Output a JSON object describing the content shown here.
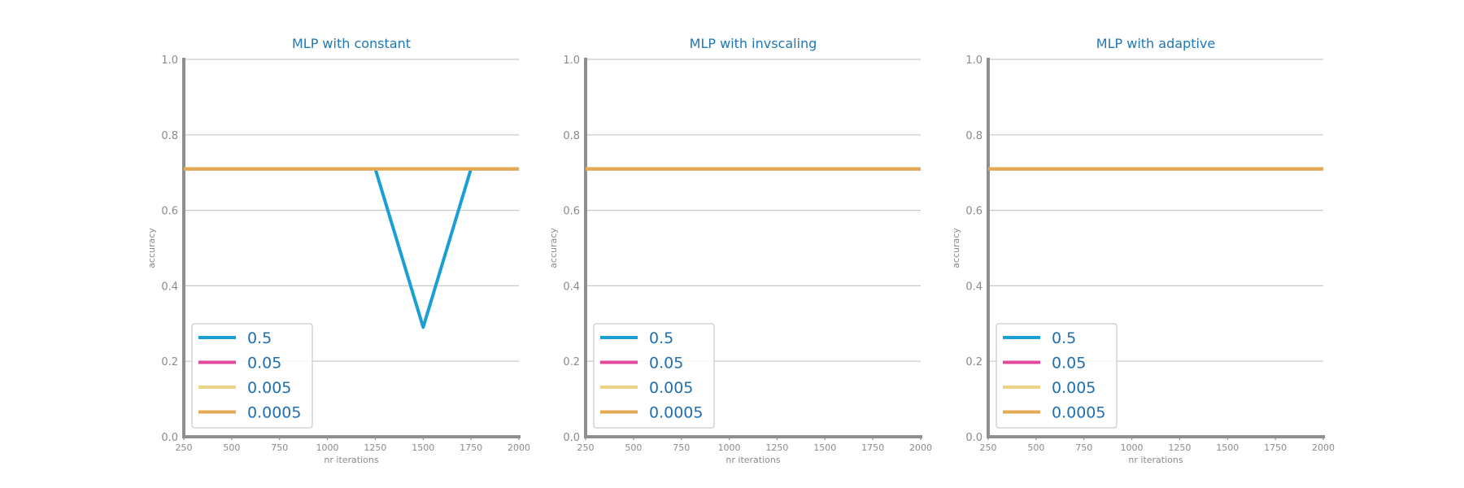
{
  "chart_data": [
    {
      "type": "line",
      "title": "MLP with constant",
      "xlabel": "nr iterations",
      "ylabel": "accuracy",
      "x": [
        250,
        500,
        750,
        1000,
        1250,
        1500,
        1750,
        2000
      ],
      "xticks": [
        "250",
        "500",
        "750",
        "1000",
        "1250",
        "1500",
        "1750",
        "2000"
      ],
      "yticks": [
        "0.0",
        "0.2",
        "0.4",
        "0.6",
        "0.8",
        "1.0"
      ],
      "xlim": [
        250,
        2000
      ],
      "ylim": [
        0,
        1
      ],
      "grid": "horizontal",
      "legend_position": "lower-left",
      "series": [
        {
          "name": "0.5",
          "color": "#1b9ed4",
          "values": [
            0.71,
            0.71,
            0.71,
            0.71,
            0.71,
            0.29,
            0.71,
            0.71
          ]
        },
        {
          "name": "0.05",
          "color": "#e2479a",
          "values": [
            0.71,
            0.71,
            0.71,
            0.71,
            0.71,
            0.71,
            0.71,
            0.71
          ]
        },
        {
          "name": "0.005",
          "color": "#e9d585",
          "values": [
            0.71,
            0.71,
            0.71,
            0.71,
            0.71,
            0.71,
            0.71,
            0.71
          ]
        },
        {
          "name": "0.0005",
          "color": "#e3aa52",
          "values": [
            0.71,
            0.71,
            0.71,
            0.71,
            0.71,
            0.71,
            0.71,
            0.71
          ]
        }
      ]
    },
    {
      "type": "line",
      "title": "MLP with invscaling",
      "xlabel": "nr iterations",
      "ylabel": "accuracy",
      "x": [
        250,
        500,
        750,
        1000,
        1250,
        1500,
        1750,
        2000
      ],
      "xticks": [
        "250",
        "500",
        "750",
        "1000",
        "1250",
        "1500",
        "1750",
        "2000"
      ],
      "yticks": [
        "0.0",
        "0.2",
        "0.4",
        "0.6",
        "0.8",
        "1.0"
      ],
      "xlim": [
        250,
        2000
      ],
      "ylim": [
        0,
        1
      ],
      "grid": "horizontal",
      "legend_position": "lower-left",
      "series": [
        {
          "name": "0.5",
          "color": "#1b9ed4",
          "values": [
            0.71,
            0.71,
            0.71,
            0.71,
            0.71,
            0.71,
            0.71,
            0.71
          ]
        },
        {
          "name": "0.05",
          "color": "#e2479a",
          "values": [
            0.71,
            0.71,
            0.71,
            0.71,
            0.71,
            0.71,
            0.71,
            0.71
          ]
        },
        {
          "name": "0.005",
          "color": "#e9d585",
          "values": [
            0.71,
            0.71,
            0.71,
            0.71,
            0.71,
            0.71,
            0.71,
            0.71
          ]
        },
        {
          "name": "0.0005",
          "color": "#e3aa52",
          "values": [
            0.71,
            0.71,
            0.71,
            0.71,
            0.71,
            0.71,
            0.71,
            0.71
          ]
        }
      ]
    },
    {
      "type": "line",
      "title": "MLP with adaptive",
      "xlabel": "nr iterations",
      "ylabel": "accuracy",
      "x": [
        250,
        500,
        750,
        1000,
        1250,
        1500,
        1750,
        2000
      ],
      "xticks": [
        "250",
        "500",
        "750",
        "1000",
        "1250",
        "1500",
        "1750",
        "2000"
      ],
      "yticks": [
        "0.0",
        "0.2",
        "0.4",
        "0.6",
        "0.8",
        "1.0"
      ],
      "xlim": [
        250,
        2000
      ],
      "ylim": [
        0,
        1
      ],
      "grid": "horizontal",
      "legend_position": "lower-left",
      "series": [
        {
          "name": "0.5",
          "color": "#1b9ed4",
          "values": [
            0.71,
            0.71,
            0.71,
            0.71,
            0.71,
            0.71,
            0.71,
            0.71
          ]
        },
        {
          "name": "0.05",
          "color": "#e2479a",
          "values": [
            0.71,
            0.71,
            0.71,
            0.71,
            0.71,
            0.71,
            0.71,
            0.71
          ]
        },
        {
          "name": "0.005",
          "color": "#e9d585",
          "values": [
            0.71,
            0.71,
            0.71,
            0.71,
            0.71,
            0.71,
            0.71,
            0.71
          ]
        },
        {
          "name": "0.0005",
          "color": "#e3aa52",
          "values": [
            0.71,
            0.71,
            0.71,
            0.71,
            0.71,
            0.71,
            0.71,
            0.71
          ]
        }
      ]
    }
  ]
}
